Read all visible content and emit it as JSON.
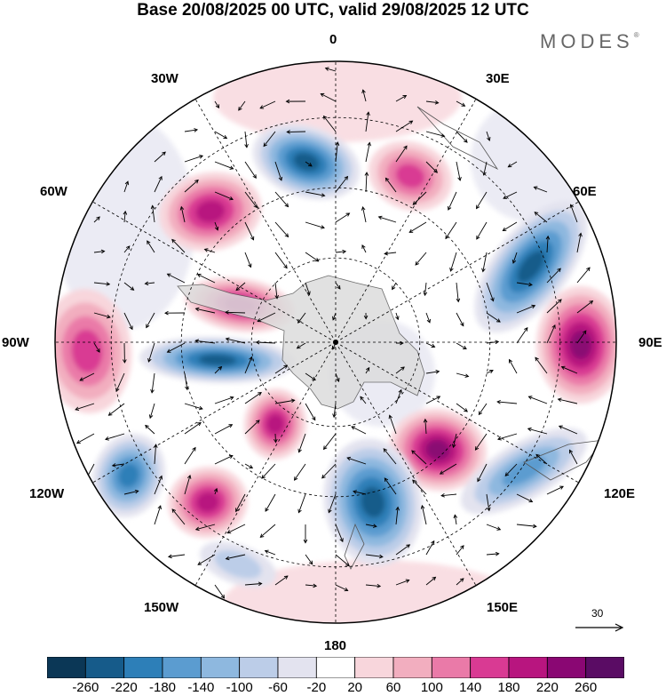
{
  "title": "Base 20/08/2025 00 UTC, valid 29/08/2025 12 UTC",
  "brand": "MODES",
  "brand_mark": "®",
  "map": {
    "projection": "south-polar-stereographic",
    "center": "South Pole",
    "longitude_labels": {
      "top": "0",
      "top_right": "30E",
      "upper_right": "60E",
      "right": "90E",
      "lower_right": "120E",
      "bottom_right": "150E",
      "bottom": "180",
      "bottom_left": "150W",
      "lower_left": "120W",
      "left": "90W",
      "upper_left": "60W",
      "top_left": "30W"
    },
    "field": "anomaly with wind vectors",
    "anomaly_centers": [
      {
        "region": "near 0-30W, mid-latitude",
        "sign": "negative",
        "magnitude": 220
      },
      {
        "region": "60W",
        "sign": "positive",
        "magnitude": 180
      },
      {
        "region": "Antarctic Peninsula / 60-90W",
        "sign": "positive",
        "magnitude": 180
      },
      {
        "region": "90W coastal",
        "sign": "negative",
        "magnitude": 220
      },
      {
        "region": "90W outer",
        "sign": "positive",
        "magnitude": 140
      },
      {
        "region": "15E",
        "sign": "positive",
        "magnitude": 140
      },
      {
        "region": "60E",
        "sign": "negative",
        "magnitude": 220
      },
      {
        "region": "90E",
        "sign": "positive",
        "magnitude": 220
      },
      {
        "region": "120E",
        "sign": "positive",
        "magnitude": 220
      },
      {
        "region": "130E outer",
        "sign": "negative",
        "magnitude": 140
      },
      {
        "region": "165E",
        "sign": "negative",
        "magnitude": 220
      },
      {
        "region": "120W",
        "sign": "negative",
        "magnitude": 180
      },
      {
        "region": "135W",
        "sign": "positive",
        "magnitude": 180
      },
      {
        "region": "160W",
        "sign": "positive",
        "magnitude": 180
      },
      {
        "region": "150W outer",
        "sign": "negative",
        "magnitude": 60
      }
    ]
  },
  "vector_reference": {
    "value": "30"
  },
  "colorbar": {
    "labels": [
      "-260",
      "-220",
      "-180",
      "-140",
      "-100",
      "-60",
      "-20",
      "20",
      "60",
      "100",
      "140",
      "180",
      "220",
      "260"
    ],
    "colors": [
      "#0b3756",
      "#165b8a",
      "#2d7fb8",
      "#5b9cd0",
      "#8eb8df",
      "#bccde8",
      "#e3e3ef",
      "#ffffff",
      "#f8d6dc",
      "#f2aebf",
      "#ea7aa8",
      "#d93a93",
      "#b8157f",
      "#8a0773",
      "#5a0c64"
    ]
  }
}
